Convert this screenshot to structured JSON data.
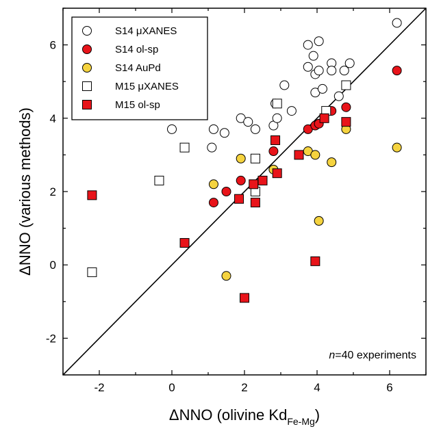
{
  "chart_data": {
    "type": "scatter",
    "xlabel": "ΔNNO (olivine Kd",
    "xlabel_sub": "Fe-Mg",
    "xlabel_end": ")",
    "ylabel": "ΔNNO (various methods)",
    "xlim": [
      -3,
      7
    ],
    "ylim": [
      -3,
      7
    ],
    "xticks": [
      -2,
      0,
      2,
      4,
      6
    ],
    "yticks": [
      -2,
      0,
      2,
      4,
      6
    ],
    "grid": false,
    "legend_position": "top-left",
    "reference_line": "1:1",
    "annotation": {
      "italic": "n",
      "rest": "=40 experiments"
    },
    "series": [
      {
        "name": "S14 μXANES",
        "marker": "circle",
        "fill": "#ffffff",
        "points": [
          [
            0.0,
            3.7
          ],
          [
            1.1,
            3.2
          ],
          [
            1.15,
            3.7
          ],
          [
            1.45,
            3.6
          ],
          [
            1.9,
            4.0
          ],
          [
            2.1,
            3.9
          ],
          [
            2.3,
            3.7
          ],
          [
            2.8,
            3.8
          ],
          [
            2.85,
            4.4
          ],
          [
            2.9,
            4.0
          ],
          [
            3.1,
            4.9
          ],
          [
            3.3,
            4.2
          ],
          [
            3.75,
            6.0
          ],
          [
            3.75,
            5.4
          ],
          [
            3.9,
            5.7
          ],
          [
            3.95,
            5.2
          ],
          [
            3.95,
            4.7
          ],
          [
            4.05,
            6.1
          ],
          [
            4.05,
            5.3
          ],
          [
            4.15,
            4.8
          ],
          [
            4.4,
            5.5
          ],
          [
            4.4,
            5.3
          ],
          [
            4.6,
            4.6
          ],
          [
            4.75,
            5.3
          ],
          [
            4.9,
            5.5
          ],
          [
            6.2,
            6.6
          ]
        ]
      },
      {
        "name": "S14 ol-sp",
        "marker": "circle",
        "fill": "#e8141a",
        "points": [
          [
            1.15,
            1.7
          ],
          [
            1.5,
            2.0
          ],
          [
            1.9,
            2.3
          ],
          [
            2.8,
            3.1
          ],
          [
            3.75,
            3.7
          ],
          [
            3.95,
            3.8
          ],
          [
            4.05,
            3.85
          ],
          [
            4.4,
            4.2
          ],
          [
            4.8,
            4.3
          ],
          [
            6.2,
            5.3
          ]
        ]
      },
      {
        "name": "S14 AuPd",
        "marker": "circle",
        "fill": "#f5d33f",
        "points": [
          [
            1.15,
            2.2
          ],
          [
            1.5,
            -0.3
          ],
          [
            1.9,
            2.9
          ],
          [
            2.8,
            2.6
          ],
          [
            3.75,
            3.1
          ],
          [
            3.95,
            3.0
          ],
          [
            4.05,
            1.2
          ],
          [
            4.4,
            2.8
          ],
          [
            4.8,
            3.7
          ],
          [
            6.2,
            3.2
          ]
        ]
      },
      {
        "name": "M15 μXANES",
        "marker": "square",
        "fill": "#ffffff",
        "points": [
          [
            -2.2,
            -0.2
          ],
          [
            -0.35,
            2.3
          ],
          [
            0.35,
            3.2
          ],
          [
            2.3,
            2.9
          ],
          [
            2.3,
            2.0
          ],
          [
            2.9,
            4.4
          ],
          [
            4.25,
            4.2
          ],
          [
            4.8,
            4.9
          ]
        ]
      },
      {
        "name": "M15 ol-sp",
        "marker": "square",
        "fill": "#e8141a",
        "points": [
          [
            -2.2,
            1.9
          ],
          [
            0.35,
            0.6
          ],
          [
            1.85,
            1.8
          ],
          [
            2.0,
            -0.9
          ],
          [
            2.25,
            2.2
          ],
          [
            2.3,
            1.7
          ],
          [
            2.5,
            2.3
          ],
          [
            2.85,
            3.4
          ],
          [
            2.9,
            2.5
          ],
          [
            3.5,
            3.0
          ],
          [
            3.95,
            0.1
          ],
          [
            4.2,
            4.0
          ],
          [
            4.8,
            3.9
          ]
        ]
      }
    ]
  }
}
